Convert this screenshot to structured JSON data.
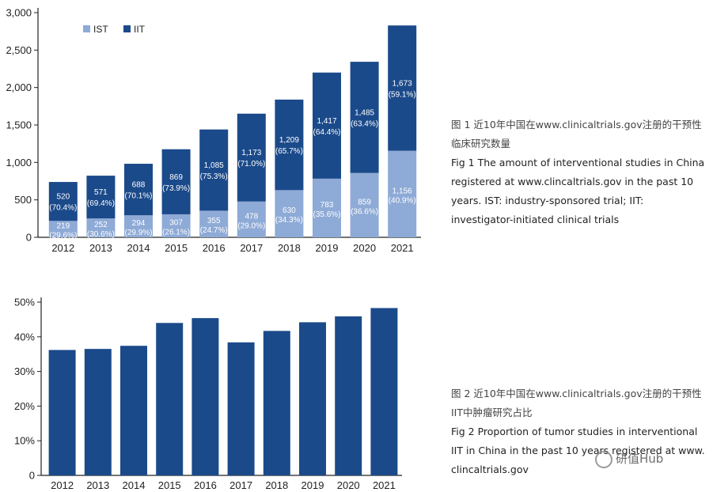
{
  "chart_data": [
    {
      "type": "bar",
      "stacked": true,
      "categories": [
        "2012",
        "2013",
        "2014",
        "2015",
        "2016",
        "2017",
        "2018",
        "2019",
        "2020",
        "2021"
      ],
      "series": [
        {
          "name": "IST",
          "color": "#8eaad6",
          "values": [
            219,
            252,
            294,
            307,
            355,
            478,
            630,
            783,
            859,
            1156
          ],
          "labels": [
            "219",
            "252",
            "294",
            "307",
            "355",
            "478",
            "630",
            "783",
            "859",
            "1,156"
          ],
          "pct_labels": [
            "(29.6%)",
            "(30.6%)",
            "(29.9%)",
            "(26.1%)",
            "(24.7%)",
            "(29.0%)",
            "(34.3%)",
            "(35.6%)",
            "(36.6%)",
            "(40.9%)"
          ]
        },
        {
          "name": "IIT",
          "color": "#1b4a8a",
          "values": [
            520,
            571,
            688,
            869,
            1085,
            1173,
            1209,
            1417,
            1485,
            1673
          ],
          "labels": [
            "520",
            "571",
            "688",
            "869",
            "1,085",
            "1,173",
            "1,209",
            "1,417",
            "1,485",
            "1,673"
          ],
          "pct_labels": [
            "(70.4%)",
            "(69.4%)",
            "(70.1%)",
            "(73.9%)",
            "(75.3%)",
            "(71.0%)",
            "(65.7%)",
            "(64.4%)",
            "(63.4%)",
            "(59.1%)"
          ]
        }
      ],
      "ylim": [
        0,
        3000
      ],
      "yticks": [
        "0",
        "500",
        "1,000",
        "1,500",
        "2,000",
        "2,500",
        "3,000"
      ],
      "legend": "top-left",
      "grid": false
    },
    {
      "type": "bar",
      "categories": [
        "2012",
        "2013",
        "2014",
        "2015",
        "2016",
        "2017",
        "2018",
        "2019",
        "2020",
        "2021"
      ],
      "values": [
        36.2,
        36.5,
        37.4,
        44.0,
        45.4,
        38.4,
        41.7,
        44.2,
        45.9,
        48.3
      ],
      "color": "#1b4a8a",
      "ylim": [
        0,
        50
      ],
      "yticks": [
        "0",
        "10%",
        "20%",
        "30%",
        "40%",
        "50%"
      ],
      "grid": false
    }
  ],
  "captions": {
    "fig1_cn": "图 1  近10年中国在www.clinicaltrials.gov注册的干预性临床研究数量",
    "fig1_en": "Fig 1  The amount of interventional studies in China registered at www.clincaltrials.gov in the past 10 years.  IST: industry-sponsored trial; IIT: investigator-initiated clinical trials",
    "fig2_cn": "图 2  近10年中国在www.clinicaltrials.gov注册的干预性IIT中肿瘤研究占比",
    "fig2_en": "Fig 2  Proportion of tumor studies in interventional IIT in China in the past 10 years registered at www. clincaltrials.gov"
  },
  "watermark": "研值Hub"
}
